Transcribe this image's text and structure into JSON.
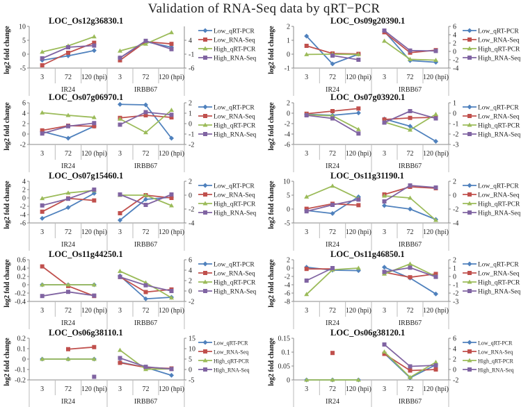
{
  "title": "Validation of RNA-Seq data by qRT−PCR",
  "colors": {
    "Low_qRT-PCR": "#4f81bd",
    "Low_RNA-Seq": "#c0504d",
    "High_qRT-PCR": "#9bbb59",
    "High_RNA-Seq": "#8064a2"
  },
  "chart_data": [
    {
      "type": "line",
      "title": "LOC_Os12g36830.1",
      "ylabel": "log2 fold change",
      "categories": [
        "3",
        "72",
        "120 (hpi)"
      ],
      "groups": [
        "IR24",
        "IRBB67"
      ],
      "ylim_left": [
        -5,
        10
      ],
      "yticks_left": [
        -5,
        0,
        5,
        10
      ],
      "ylim_right": [
        -6,
        9
      ],
      "yticks_right": [
        -6,
        -1,
        4
      ],
      "series": [
        {
          "name": "Low_qRT-PCR",
          "IR24": [
            -2.2,
            -0.6,
            1.3
          ],
          "IRBB67": [
            -2.3,
            3.5,
            1.5
          ]
        },
        {
          "name": "Low_RNA-Seq",
          "IR24": [
            -4,
            0.5,
            4.1
          ],
          "IRBB67": [
            -3.2,
            3.5,
            2.7
          ]
        },
        {
          "name": "High_qRT-PCR",
          "IR24": [
            0.8,
            3,
            6.3
          ],
          "IRBB67": [
            0.2,
            2.7,
            6.8
          ]
        },
        {
          "name": "High_RNA-Seq",
          "IR24": [
            -1.5,
            2.5,
            3.1
          ],
          "IRBB67": [
            -2.3,
            3.8,
            0.8
          ]
        }
      ]
    },
    {
      "type": "line",
      "title": "LOC_Os09g20390.1",
      "ylabel": "log2 fold change",
      "categories": [
        "3",
        "72",
        "120 (hpi)"
      ],
      "groups": [
        "IR24",
        "IRBB67"
      ],
      "ylim_left": [
        -1,
        2
      ],
      "yticks_left": [
        -1,
        0,
        1,
        2
      ],
      "ylim_right": [
        -4,
        6
      ],
      "yticks_right": [
        -4,
        -2,
        0,
        2,
        4,
        6
      ],
      "series": [
        {
          "name": "Low_qRT-PCR",
          "IR24": [
            1.3,
            -0.7,
            0
          ],
          "IRBB67": [
            4.8,
            -2.2,
            -2.6
          ]
        },
        {
          "name": "Low_RNA-Seq",
          "IR24": [
            0.6,
            0.05,
            0.02
          ],
          "IRBB67": [
            4.6,
            -0.3,
            0.3
          ]
        },
        {
          "name": "High_qRT-PCR",
          "IR24": [
            -0.02,
            0,
            -0.02
          ],
          "IRBB67": [
            2.5,
            -1.9,
            -2.1
          ]
        },
        {
          "name": "High_RNA-Seq",
          "IR24": [
            null,
            -0.1,
            -0.4
          ],
          "IRBB67": [
            5,
            0.2,
            0.1
          ]
        }
      ]
    },
    {
      "type": "line",
      "title": "LOC_Os07g06970.1",
      "ylabel": "log2 fold change",
      "categories": [
        "3",
        "72",
        "120 (hpi)"
      ],
      "groups": [
        "IR24",
        "IRBB67"
      ],
      "ylim_left": [
        -2,
        6
      ],
      "yticks_left": [
        -2,
        0,
        2,
        4,
        6
      ],
      "ylim_right": [
        -2,
        2
      ],
      "yticks_right": [
        -2,
        -1,
        0,
        1,
        2
      ],
      "series": [
        {
          "name": "Low_qRT-PCR",
          "IR24": [
            0.5,
            -0.8,
            1.5
          ],
          "IRBB67": [
            1.85,
            1.8,
            -1.4
          ]
        },
        {
          "name": "Low_RNA-Seq",
          "IR24": [
            0.7,
            1.6,
            1.5
          ],
          "IRBB67": [
            0.55,
            0.8,
            0.6
          ]
        },
        {
          "name": "High_qRT-PCR",
          "IR24": [
            4.1,
            3.6,
            3.2
          ],
          "IRBB67": [
            0.45,
            -0.85,
            1.3
          ]
        },
        {
          "name": "High_RNA-Seq",
          "IR24": [
            0.1,
            1.5,
            2.1
          ],
          "IRBB67": [
            -0.1,
            1.1,
            0.85
          ]
        }
      ]
    },
    {
      "type": "line",
      "title": "LOC_Os07g03920.1",
      "ylabel": "log2 fold change",
      "categories": [
        "3",
        "72",
        "120 (hpi)"
      ],
      "groups": [
        "IR24",
        "IRBB67"
      ],
      "ylim_left": [
        -6,
        2
      ],
      "yticks_left": [
        -6,
        -4,
        -2,
        0,
        2
      ],
      "ylim_right": [
        -3,
        1
      ],
      "yticks_right": [
        -3,
        -2,
        -1,
        0,
        1
      ],
      "series": [
        {
          "name": "Low_qRT-PCR",
          "IR24": [
            -0.2,
            -0.4,
            0.05
          ],
          "IRBB67": [
            -0.55,
            -1.25,
            -2.7
          ]
        },
        {
          "name": "Low_RNA-Seq",
          "IR24": [
            -0.1,
            0.4,
            0.9
          ],
          "IRBB67": [
            -0.6,
            -0.45,
            -0.4
          ]
        },
        {
          "name": "High_qRT-PCR",
          "IR24": [
            -0.3,
            -0.5,
            -3.1
          ],
          "IRBB67": [
            -0.85,
            -1.6,
            -0.1
          ]
        },
        {
          "name": "High_RNA-Seq",
          "IR24": [
            -0.4,
            -1,
            -3.9
          ],
          "IRBB67": [
            -0.9,
            0.2,
            -0.5
          ]
        }
      ]
    },
    {
      "type": "line",
      "title": "LOC_Os07g15460.1",
      "ylabel": "log2 fold change",
      "categories": [
        "3",
        "72",
        "120 (hpi)"
      ],
      "groups": [
        "IR24",
        "IRBB67"
      ],
      "ylim_left": [
        -6,
        4
      ],
      "yticks_left": [
        -6,
        -4,
        -2,
        0,
        2,
        4
      ],
      "ylim_right": [
        -4,
        2
      ],
      "yticks_right": [
        -4,
        -2,
        0,
        2
      ],
      "series": [
        {
          "name": "Low_qRT-PCR",
          "IR24": [
            -4.9,
            -2.3,
            1.1
          ],
          "IRBB67": [
            -3.6,
            -0.6,
            -0.3
          ]
        },
        {
          "name": "Low_RNA-Seq",
          "IR24": [
            -3.3,
            -0.1,
            -0.6
          ],
          "IRBB67": [
            -2.6,
            0,
            -0.4
          ]
        },
        {
          "name": "High_qRT-PCR",
          "IR24": [
            -0.1,
            1.2,
            1.8
          ],
          "IRBB67": [
            0,
            0,
            -1.5
          ]
        },
        {
          "name": "High_RNA-Seq",
          "IR24": [
            -1.8,
            -0.2,
            2
          ],
          "IRBB67": [
            0.1,
            -1.4,
            0.1
          ]
        }
      ]
    },
    {
      "type": "line",
      "title": "LOC_Os11g31190.1",
      "ylabel": "log2 fold change",
      "categories": [
        "3",
        "72",
        "120 (hpi)"
      ],
      "groups": [
        "IR24",
        "IRBB67"
      ],
      "ylim_left": [
        -5,
        10
      ],
      "yticks_left": [
        -5,
        0,
        5,
        10
      ],
      "ylim_right": [
        -4,
        2
      ],
      "yticks_right": [
        -4,
        -2,
        0,
        2
      ],
      "series": [
        {
          "name": "Low_qRT-PCR",
          "IR24": [
            -0.5,
            -1.6,
            4.4
          ],
          "IRBB67": [
            -1.5,
            -2,
            -3.5
          ]
        },
        {
          "name": "Low_RNA-Seq",
          "IR24": [
            0.1,
            1.9,
            1.4
          ],
          "IRBB67": [
            0.1,
            1.2,
            1
          ]
        },
        {
          "name": "High_qRT-PCR",
          "IR24": [
            4.4,
            8.3,
            3.8
          ],
          "IRBB67": [
            -0.1,
            -0.4,
            -3.6
          ]
        },
        {
          "name": "High_RNA-Seq",
          "IR24": [
            -0.8,
            1.5,
            3.4
          ],
          "IRBB67": [
            -0.9,
            1.4,
            1.1
          ]
        }
      ]
    },
    {
      "type": "line",
      "title": "LOC_Os11g44250.1",
      "ylabel": "log2 fold change",
      "categories": [
        "3",
        "72",
        "120 (hpi)"
      ],
      "groups": [
        "IR24",
        "IRBB67"
      ],
      "ylim_left": [
        -0.4,
        0.6
      ],
      "yticks_left": [
        -0.4,
        -0.2,
        0,
        0.2,
        0.4,
        0.6
      ],
      "ylim_right": [
        -2,
        6
      ],
      "yticks_right": [
        -2,
        0,
        2,
        4,
        6
      ],
      "series": [
        {
          "name": "Low_qRT-PCR",
          "IR24": [
            0,
            0,
            0
          ],
          "IRBB67": [
            2.9,
            -1.5,
            -1.2
          ]
        },
        {
          "name": "Low_RNA-Seq",
          "IR24": [
            0.44,
            -0.03,
            -0.27
          ],
          "IRBB67": [
            2.7,
            -0.2,
            0.3
          ]
        },
        {
          "name": "High_qRT-PCR",
          "IR24": [
            0,
            0,
            0
          ],
          "IRBB67": [
            3.8,
            1.6,
            -1.3
          ]
        },
        {
          "name": "High_RNA-Seq",
          "IR24": [
            -0.27,
            -0.17,
            -0.26
          ],
          "IRBB67": [
            2.7,
            1.1,
            0
          ]
        }
      ]
    },
    {
      "type": "line",
      "title": "LOC_Os11g46850.1",
      "ylabel": "log2 fold change",
      "categories": [
        "3",
        "72",
        "120 (hpi)"
      ],
      "groups": [
        "IR24",
        "IRBB67"
      ],
      "ylim_left": [
        -8,
        2
      ],
      "yticks_left": [
        -8,
        -6,
        -4,
        -2,
        0,
        2
      ],
      "ylim_right": [
        -3,
        2
      ],
      "yticks_right": [
        -3,
        -2,
        -1,
        0,
        1,
        2
      ],
      "series": [
        {
          "name": "Low_qRT-PCR",
          "IR24": [
            0.2,
            -0.5,
            -0.6
          ],
          "IRBB67": [
            1.1,
            -0.2,
            -2.1
          ]
        },
        {
          "name": "Low_RNA-Seq",
          "IR24": [
            -0.2,
            -0.2,
            null
          ],
          "IRBB67": [
            0.5,
            -0.1,
            0.3
          ]
        },
        {
          "name": "High_qRT-PCR",
          "IR24": [
            -6.3,
            -0.4,
            0
          ],
          "IRBB67": [
            0.3,
            1.5,
            0
          ]
        },
        {
          "name": "High_RNA-Seq",
          "IR24": [
            -3,
            0,
            null
          ],
          "IRBB67": [
            0.55,
            1.05,
            -0.05
          ]
        }
      ]
    },
    {
      "type": "line",
      "title": "LOC_Os06g38110.1",
      "ylabel": "log2 fold change",
      "categories": [
        "3",
        "72",
        "120 (hpi)"
      ],
      "groups": [
        "IR24",
        "IRBB67"
      ],
      "ylim_left": [
        -0.2,
        0.2
      ],
      "yticks_left": [
        -0.2,
        -0.1,
        0,
        0.1,
        0.2
      ],
      "ylim_right": [
        -5,
        15
      ],
      "yticks_right": [
        -5,
        0,
        5,
        10,
        15
      ],
      "series": [
        {
          "name": "Low_qRT-PCR",
          "IR24": [
            0,
            0,
            0
          ],
          "IRBB67": [
            3.5,
            1,
            -2.8
          ]
        },
        {
          "name": "Low_RNA-Seq",
          "IR24": [
            null,
            0.095,
            0.115
          ],
          "IRBB67": [
            3.2,
            1,
            0.5
          ]
        },
        {
          "name": "High_qRT-PCR",
          "IR24": [
            0,
            0,
            0
          ],
          "IRBB67": [
            9.3,
            0.1,
            0.3
          ]
        },
        {
          "name": "High_RNA-Seq",
          "IR24": [
            null,
            null,
            -0.17
          ],
          "IRBB67": [
            5.5,
            1.3,
            0.2
          ]
        }
      ]
    },
    {
      "type": "line",
      "title": "LOC_Os06g38120.1",
      "ylabel": "log2 fold change",
      "categories": [
        "3",
        "72",
        "120 (hpi)"
      ],
      "groups": [
        "IR24",
        "IRBB67"
      ],
      "ylim_left": [
        0,
        0.15
      ],
      "yticks_left": [
        0,
        0.05,
        0.1,
        0.15
      ],
      "ylim_right": [
        -2,
        6
      ],
      "yticks_right": [
        -2,
        0,
        2,
        4,
        6
      ],
      "series": [
        {
          "name": "Low_qRT-PCR",
          "IR24": [
            0,
            0,
            0
          ],
          "IRBB67": [
            3.1,
            -1.6,
            0.9
          ]
        },
        {
          "name": "Low_RNA-Seq",
          "IR24": [
            null,
            0.097,
            null
          ],
          "IRBB67": [
            3,
            -0.2,
            0
          ]
        },
        {
          "name": "High_qRT-PCR",
          "IR24": [
            0,
            0,
            0
          ],
          "IRBB67": [
            3.4,
            -1.5,
            1.4
          ]
        },
        {
          "name": "High_RNA-Seq",
          "IR24": [
            null,
            null,
            null
          ],
          "IRBB67": [
            4.8,
            0.6,
            0.8
          ]
        }
      ]
    }
  ]
}
